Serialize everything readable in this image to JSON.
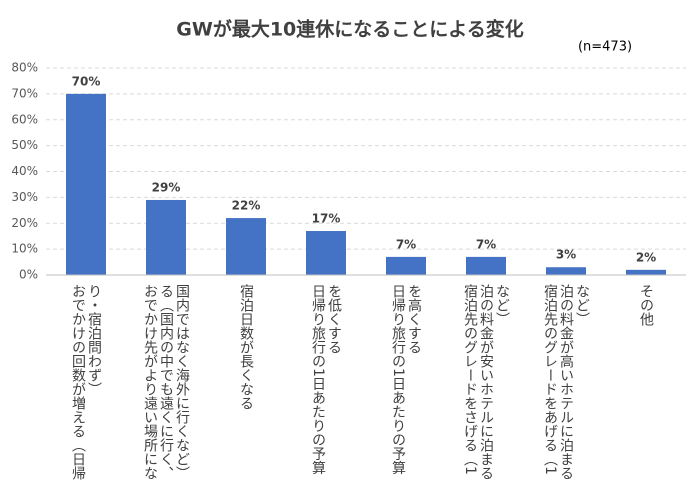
{
  "chart_data": {
    "type": "bar",
    "title": "GWが最大10連休になることによる変化",
    "subtitle": "(n=473)",
    "categories": [
      "おでかけの回数が増える（日帰り・宿泊問わず）",
      "おでかけ先がより遠い場所になる（国内の中でも遠くに行く、国内ではなく海外に行くなど）",
      "宿泊日数が長くなる",
      "日帰り旅行の1日あたりの予算を低くする",
      "日帰り旅行の1日あたりの予算を高くする",
      "宿泊先のグレードをさげる（1泊の料金が安いホテルに泊まるなど）",
      "宿泊先のグレードをあげる（1泊の料金が高いホテルに泊まるなど）",
      "その他"
    ],
    "values": [
      70,
      29,
      22,
      17,
      7,
      7,
      3,
      2
    ],
    "value_labels": [
      "70%",
      "29%",
      "22%",
      "17%",
      "7%",
      "7%",
      "3%",
      "2%"
    ],
    "color": "#4472c4",
    "ylim": [
      0,
      80
    ],
    "yticks": [
      {
        "value": 0,
        "label": "0%"
      },
      {
        "value": 10,
        "label": "10%"
      },
      {
        "value": 20,
        "label": "20%"
      },
      {
        "value": 30,
        "label": "30%"
      },
      {
        "value": 40,
        "label": "40%"
      },
      {
        "value": 50,
        "label": "50%"
      },
      {
        "value": 60,
        "label": "60%"
      },
      {
        "value": 70,
        "label": "70%"
      },
      {
        "value": 80,
        "label": "80%"
      }
    ],
    "grid": true
  }
}
